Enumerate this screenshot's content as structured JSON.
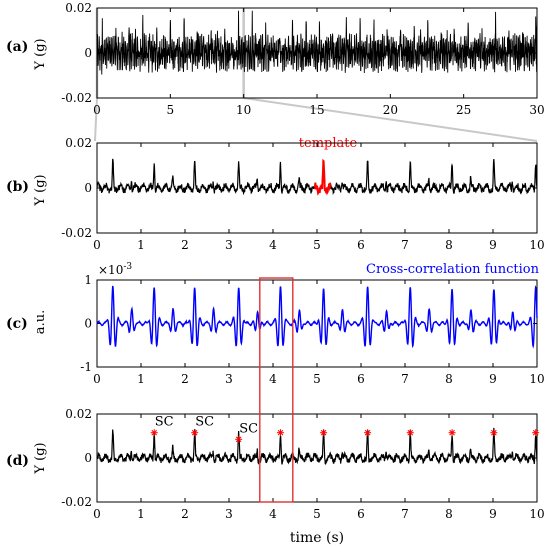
{
  "chart_data": [
    {
      "panel": "(a)",
      "type": "line",
      "ylabel": "Y (g)",
      "xlim": [
        0,
        30
      ],
      "ylim": [
        -0.02,
        0.02
      ],
      "xticks": [
        "0",
        "5",
        "10",
        "15",
        "20",
        "25",
        "30"
      ],
      "yticks": [
        "0.02",
        "0",
        "-0.02"
      ],
      "series": [
        {
          "color": "#000000",
          "beat_period_s": 0.92,
          "peak_amplitude_g": 0.012
        }
      ]
    },
    {
      "panel": "(b)",
      "type": "line",
      "ylabel": "Y (g)",
      "xlim": [
        0,
        10
      ],
      "ylim": [
        -0.02,
        0.02
      ],
      "xticks": [
        "0",
        "1",
        "2",
        "3",
        "4",
        "5",
        "6",
        "7",
        "8",
        "9",
        "10"
      ],
      "yticks": [
        "0.02",
        "0",
        "-0.02"
      ],
      "annotation": "template",
      "template_window_s": [
        4.95,
        5.3
      ],
      "series": [
        {
          "color": "#000000"
        },
        {
          "color": "#ff0000"
        }
      ]
    },
    {
      "panel": "(c)",
      "type": "line",
      "ylabel": "a.u.",
      "scale_label": "×10",
      "scale_exponent": "-3",
      "xlim": [
        0,
        10
      ],
      "ylim": [
        -1,
        1
      ],
      "xticks": [
        "0",
        "1",
        "2",
        "3",
        "4",
        "5",
        "6",
        "7",
        "8",
        "9",
        "10"
      ],
      "yticks": [
        "1",
        "0",
        "-1"
      ],
      "legend": "Cross-correlation function",
      "series": [
        {
          "color": "#0000ff"
        }
      ]
    },
    {
      "panel": "(d)",
      "type": "line",
      "ylabel": "Y (g)",
      "xlabel": "time (s)",
      "xlim": [
        0,
        10
      ],
      "ylim": [
        -0.02,
        0.02
      ],
      "xticks": [
        "0",
        "1",
        "2",
        "3",
        "4",
        "5",
        "6",
        "7",
        "8",
        "9",
        "10"
      ],
      "yticks": [
        "0.02",
        "0",
        "-0.02"
      ],
      "peak_labels": [
        "SC",
        "SC",
        "SC"
      ],
      "peaks_s": [
        1.3,
        2.22,
        3.22,
        4.17,
        5.15,
        6.15,
        7.12,
        8.07,
        9.02,
        9.97
      ],
      "series": [
        {
          "color": "#000000"
        }
      ]
    }
  ],
  "highlight_box_s": [
    3.7,
    4.45
  ],
  "colors": {
    "signal": "#000000",
    "template": "#ff0000",
    "xcorr": "#0000ff",
    "box": "#e03030",
    "zoom": "#c8c8c8"
  }
}
